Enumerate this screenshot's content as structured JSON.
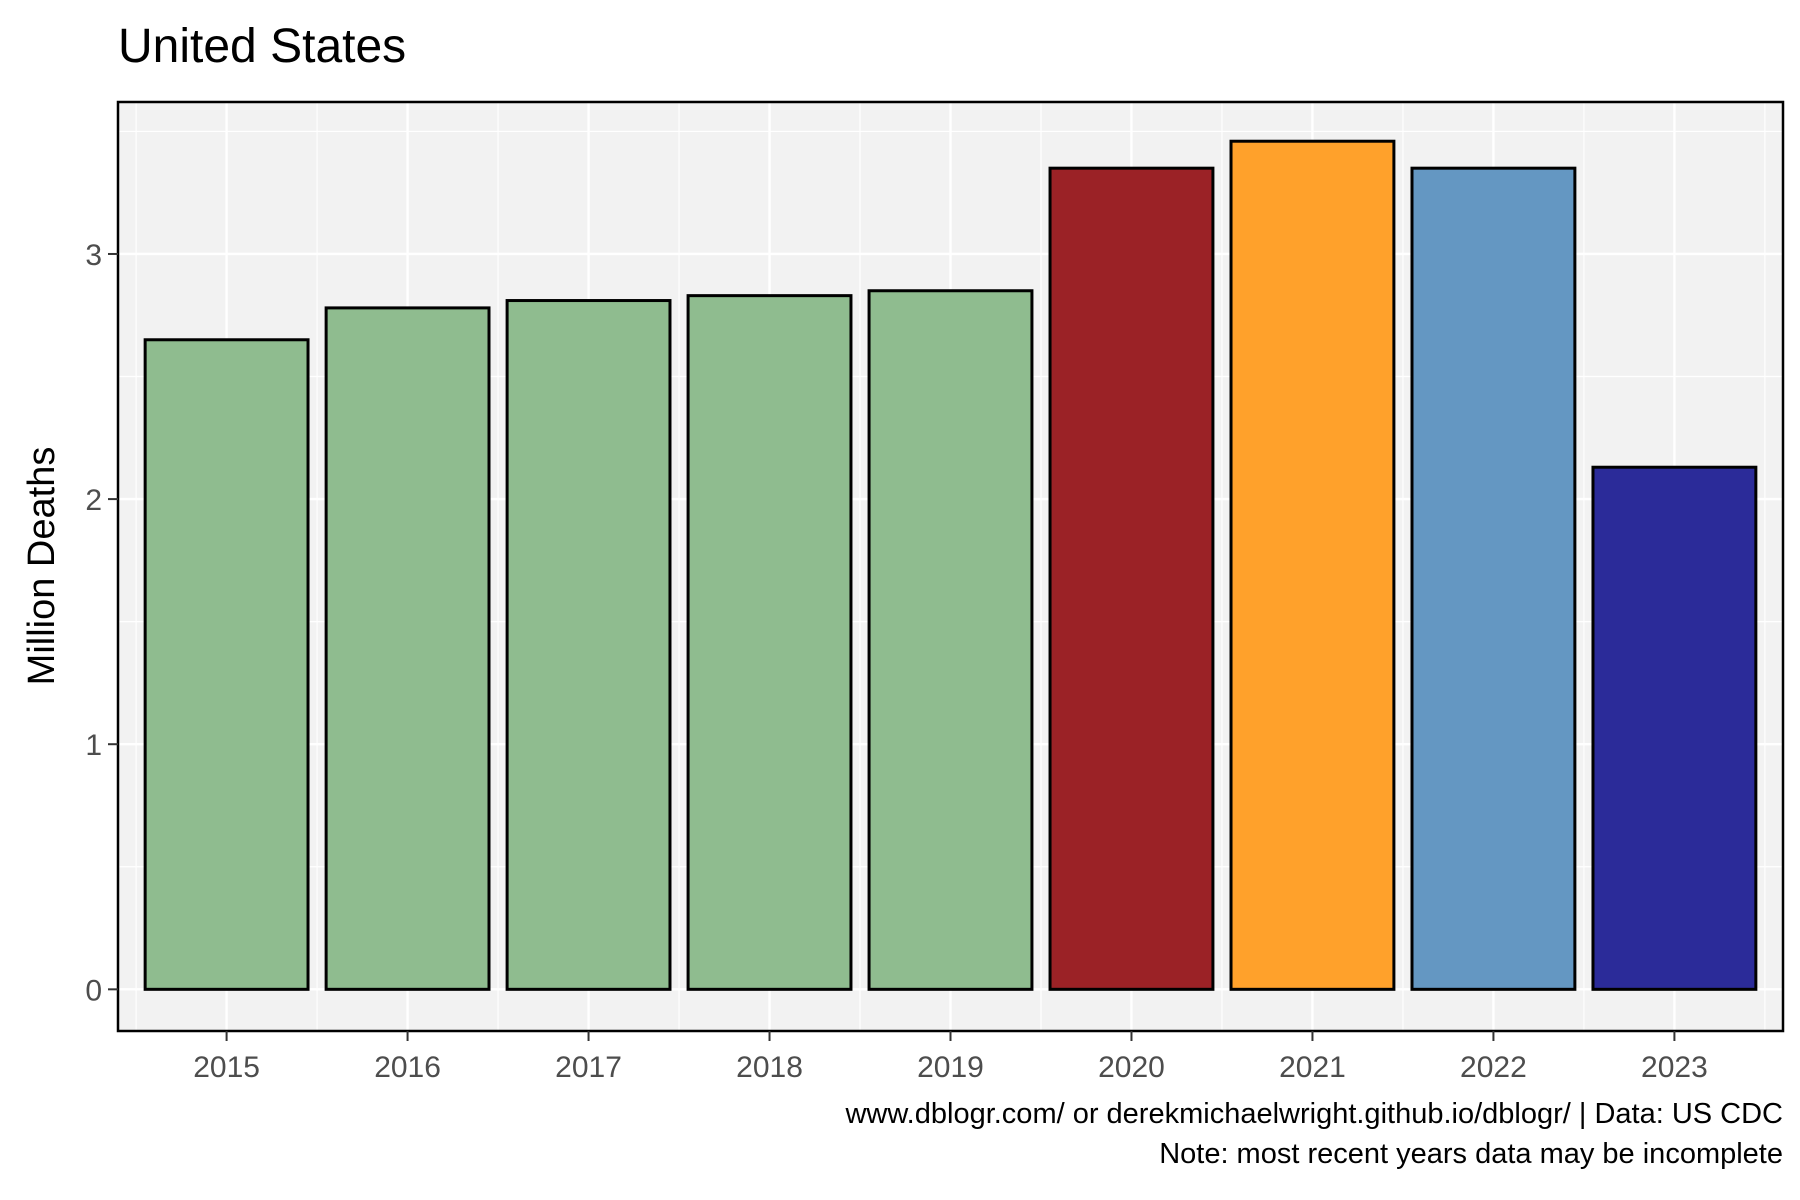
{
  "chart_data": {
    "type": "bar",
    "title": "United States",
    "xlabel": "",
    "ylabel": "Million Deaths",
    "categories": [
      "2015",
      "2016",
      "2017",
      "2018",
      "2019",
      "2020",
      "2021",
      "2022",
      "2023"
    ],
    "values": [
      2.65,
      2.78,
      2.81,
      2.83,
      2.85,
      3.35,
      3.46,
      3.35,
      2.13
    ],
    "bar_colors": [
      "#8fbc8f",
      "#8fbc8f",
      "#8fbc8f",
      "#8fbc8f",
      "#8fbc8f",
      "#9b2226",
      "#ffa12b",
      "#6497c2",
      "#2b2b99"
    ],
    "bar_outline_color": "#000000",
    "panel_background": "#f2f2f2",
    "gridline_color": "#ffffff",
    "ylim": [
      -0.17,
      3.62
    ],
    "yticks": [
      0,
      1,
      2,
      3
    ],
    "ytick_labels": [
      "0",
      "1",
      "2",
      "3"
    ],
    "grid": true,
    "legend": "none",
    "caption_lines": [
      "www.dblogr.com/ or derekmichaelwright.github.io/dblogr/ | Data: US CDC",
      "Note: most recent years data may be incomplete"
    ]
  }
}
